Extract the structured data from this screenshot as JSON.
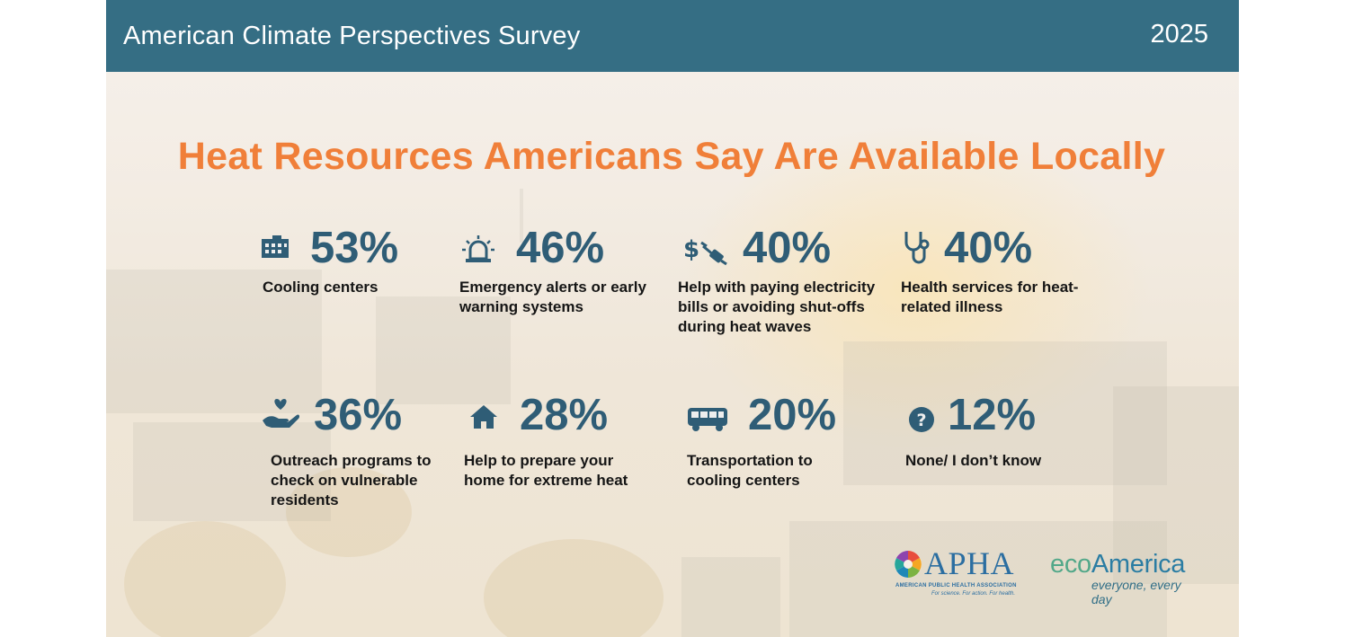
{
  "header": {
    "title": "American Climate Perspectives Survey",
    "year": "2025"
  },
  "headline": "Heat Resources Americans Say Are Available Locally",
  "colors": {
    "header_bg": "#356e84",
    "headline": "#f07f39",
    "stat_number": "#2f5d76",
    "label_text": "#151515"
  },
  "stats": [
    {
      "icon": "building-icon",
      "value": "53%",
      "label": "Cooling centers"
    },
    {
      "icon": "alarm-siren-icon",
      "value": "46%",
      "label": "Emergency alerts or early warning systems"
    },
    {
      "icon": "dollar-plug-icon",
      "value": "40%",
      "label": "Help with paying electricity bills or avoiding shut-offs during heat waves"
    },
    {
      "icon": "stethoscope-icon",
      "value": "40%",
      "label": "Health services for heat-related illness"
    },
    {
      "icon": "hand-heart-icon",
      "value": "36%",
      "label": "Outreach programs to check on vulnerable residents"
    },
    {
      "icon": "house-icon",
      "value": "28%",
      "label": "Help to prepare your home for extreme heat"
    },
    {
      "icon": "bus-icon",
      "value": "20%",
      "label": "Transportation to cooling centers"
    },
    {
      "icon": "question-circle-icon",
      "value": "12%",
      "label": "None/ I don’t know"
    }
  ],
  "logos": {
    "apha": {
      "name": "APHA",
      "subtitle": "AMERICAN PUBLIC HEALTH ASSOCIATION",
      "tagline": "For science. For action. For health."
    },
    "ecoamerica": {
      "name_part1": "eco",
      "name_part2": "America",
      "tagline": "everyone, every day"
    }
  }
}
